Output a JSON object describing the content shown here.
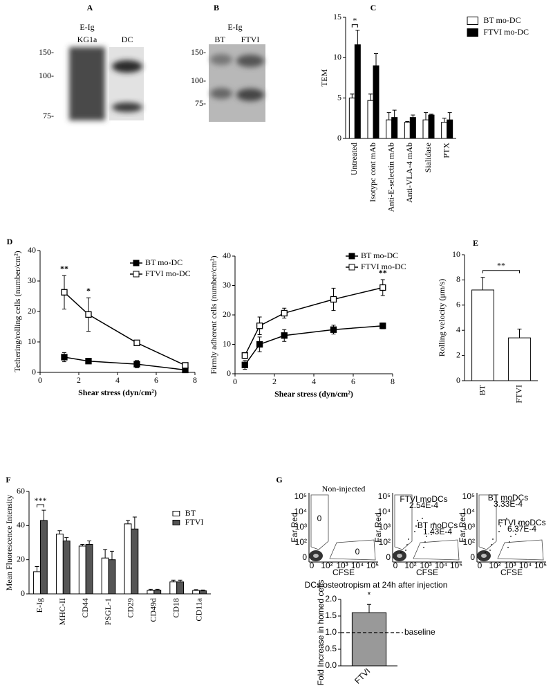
{
  "panel_labels": [
    "A",
    "B",
    "C",
    "D",
    "E",
    "F",
    "G"
  ],
  "blots": [
    {
      "lanes": [
        [
          "E-Ig",
          "KG1a"
        ],
        [
          "DC"
        ]
      ],
      "markers": [
        "150-",
        "100-",
        "75-"
      ]
    },
    {
      "header": "E-Ig",
      "lanes": [
        [
          "BT"
        ],
        [
          "FTVI"
        ]
      ],
      "markers": [
        "150-",
        "100-",
        "75-"
      ]
    }
  ],
  "flow": {
    "title": "Non-injected",
    "x_label": "CFSE",
    "y_label": "Far Red",
    "x_ticks": [
      "0",
      "10²",
      "10³",
      "10⁴",
      "10⁵"
    ],
    "y_ticks": [
      "0",
      "10²",
      "10³",
      "10⁴",
      "10⁵"
    ],
    "plots": [
      {
        "gates": [
          {
            "label": "0"
          },
          {
            "label": "0"
          }
        ]
      },
      {
        "gates": [
          {
            "name": "FTVI moDCs",
            "value": "2.54E-4"
          },
          {
            "name": "BT moDCs",
            "value": "1.43E-4"
          }
        ]
      },
      {
        "gates": [
          {
            "name": "BT moDCs",
            "value": "3.33E-4"
          },
          {
            "name": "FTVI moDCs",
            "value": "6.37E-4"
          }
        ]
      }
    ]
  },
  "chart_data": [
    {
      "type": "bar",
      "y_label": "TEM",
      "categories": [
        "Untreated",
        "Isotypc cont mAb",
        "Anti-E-selectin mAb",
        "Anti-VLA-4 mAb",
        "Sialidase",
        "PTX"
      ],
      "ylim": [
        0,
        15
      ],
      "yticks": [
        0,
        5,
        10,
        15
      ],
      "series": [
        {
          "name": "BT mo-DC",
          "color": "#ffffff",
          "values": [
            5.0,
            4.7,
            2.3,
            2.0,
            2.3,
            2.0
          ],
          "errors": [
            0.5,
            0.8,
            0.9,
            0.1,
            0.9,
            0.5
          ]
        },
        {
          "name": "FTVI mo-DC",
          "color": "#000000",
          "values": [
            11.6,
            9.0,
            2.6,
            2.6,
            2.9,
            2.3
          ],
          "errors": [
            1.8,
            1.5,
            0.9,
            0.3,
            0.1,
            0.9
          ]
        }
      ],
      "annotations": [
        {
          "text": "*",
          "category": "Untreated"
        }
      ]
    },
    {
      "type": "line",
      "x_label": "Shear stress (dyn/cm²)",
      "y_label": "Tethering/rolling cells (number/cm²)",
      "x": [
        1.25,
        2.5,
        5,
        7.5
      ],
      "xlim": [
        0,
        8
      ],
      "xticks": [
        0,
        2,
        4,
        6,
        8
      ],
      "ylim": [
        0,
        40
      ],
      "yticks": [
        0,
        10,
        20,
        30,
        40
      ],
      "series": [
        {
          "name": "BT mo-DC",
          "color": "#000000",
          "marker": "filled-square",
          "values": [
            5.0,
            3.7,
            2.7,
            0.8
          ],
          "errors": [
            1.5,
            0.7,
            1.2,
            0.3
          ]
        },
        {
          "name": "FTVI mo-DC",
          "color": "#000000",
          "marker": "open-square",
          "values": [
            26.3,
            19.0,
            9.7,
            2.3
          ],
          "errors": [
            5.5,
            5.5,
            0.5,
            0.5
          ]
        }
      ],
      "annotations": [
        {
          "text": "**",
          "x": 1.25
        },
        {
          "text": "*",
          "x": 2.5
        }
      ]
    },
    {
      "type": "line",
      "x_label": "Shear stress (dyn/cm²)",
      "y_label": "Firmly adherent cells (number/cm²)",
      "x": [
        0.5,
        1.25,
        2.5,
        5,
        7.5
      ],
      "xlim": [
        0,
        8
      ],
      "xticks": [
        0,
        2,
        4,
        6,
        8
      ],
      "ylim": [
        0,
        40
      ],
      "yticks": [
        0,
        10,
        20,
        30,
        40
      ],
      "series": [
        {
          "name": "BT mo-DC",
          "color": "#000000",
          "marker": "filled-square",
          "values": [
            3.0,
            10.0,
            13.0,
            15.0,
            16.3
          ],
          "errors": [
            1.5,
            2.5,
            2.0,
            1.5,
            1.0
          ]
        },
        {
          "name": "FTVI mo-DC",
          "color": "#000000",
          "marker": "open-square",
          "values": [
            6.2,
            16.3,
            20.6,
            25.3,
            29.3
          ],
          "errors": [
            1.0,
            3.0,
            1.7,
            3.8,
            2.7
          ]
        }
      ],
      "annotations": [
        {
          "text": "**",
          "x": 7.5
        }
      ]
    },
    {
      "type": "bar",
      "y_label": "Rolling velocity (μm/s)",
      "categories": [
        "BT",
        "FTVI"
      ],
      "values": [
        7.2,
        3.4
      ],
      "errors": [
        1.0,
        0.7
      ],
      "color": "#ffffff",
      "ylim": [
        0,
        10
      ],
      "yticks": [
        0,
        2,
        4,
        6,
        8,
        10
      ],
      "annotations": [
        {
          "text": "**",
          "categories": [
            "BT",
            "FTVI"
          ]
        }
      ]
    },
    {
      "type": "bar",
      "y_label": "Mean Fluorescence Intensity",
      "categories": [
        "E-Ig",
        "MHC-II",
        "CD44",
        "PSGL-1",
        "CD29",
        "CD49d",
        "CD18",
        "CD11a"
      ],
      "ylim": [
        0,
        60
      ],
      "yticks": [
        0,
        20,
        40,
        60
      ],
      "series": [
        {
          "name": "BT",
          "color": "#ffffff",
          "values": [
            13,
            35,
            28,
            21,
            41,
            2,
            7,
            2
          ],
          "errors": [
            3,
            2,
            1,
            5,
            2,
            0.7,
            1,
            0.5
          ]
        },
        {
          "name": "FTVI",
          "color": "#555555",
          "values": [
            43,
            31,
            29,
            20,
            38,
            2.2,
            7,
            1.8
          ],
          "errors": [
            6,
            2,
            2,
            5,
            7,
            0.5,
            1,
            0.5
          ]
        }
      ],
      "annotations": [
        {
          "text": "***",
          "category": "E-Ig"
        }
      ]
    },
    {
      "type": "bar",
      "title": "DCs osteotropism at 24h after injection",
      "y_label": "Fold Increase in homed cells",
      "categories": [
        "FTVI"
      ],
      "values": [
        1.6
      ],
      "errors": [
        0.25
      ],
      "color": "#999999",
      "ylim": [
        0,
        2
      ],
      "yticks": [
        {
          "value": 0,
          "label": "0.0"
        },
        {
          "value": 0.5,
          "label": "0.5"
        },
        {
          "value": 1,
          "label": "1.0"
        },
        {
          "value": 1.5,
          "label": "1.5"
        },
        {
          "value": 2,
          "label": "2.0"
        }
      ],
      "reference_line": {
        "value": 1,
        "label": "baseline"
      },
      "annotations": [
        {
          "text": "*",
          "category": "FTVI"
        }
      ]
    }
  ]
}
